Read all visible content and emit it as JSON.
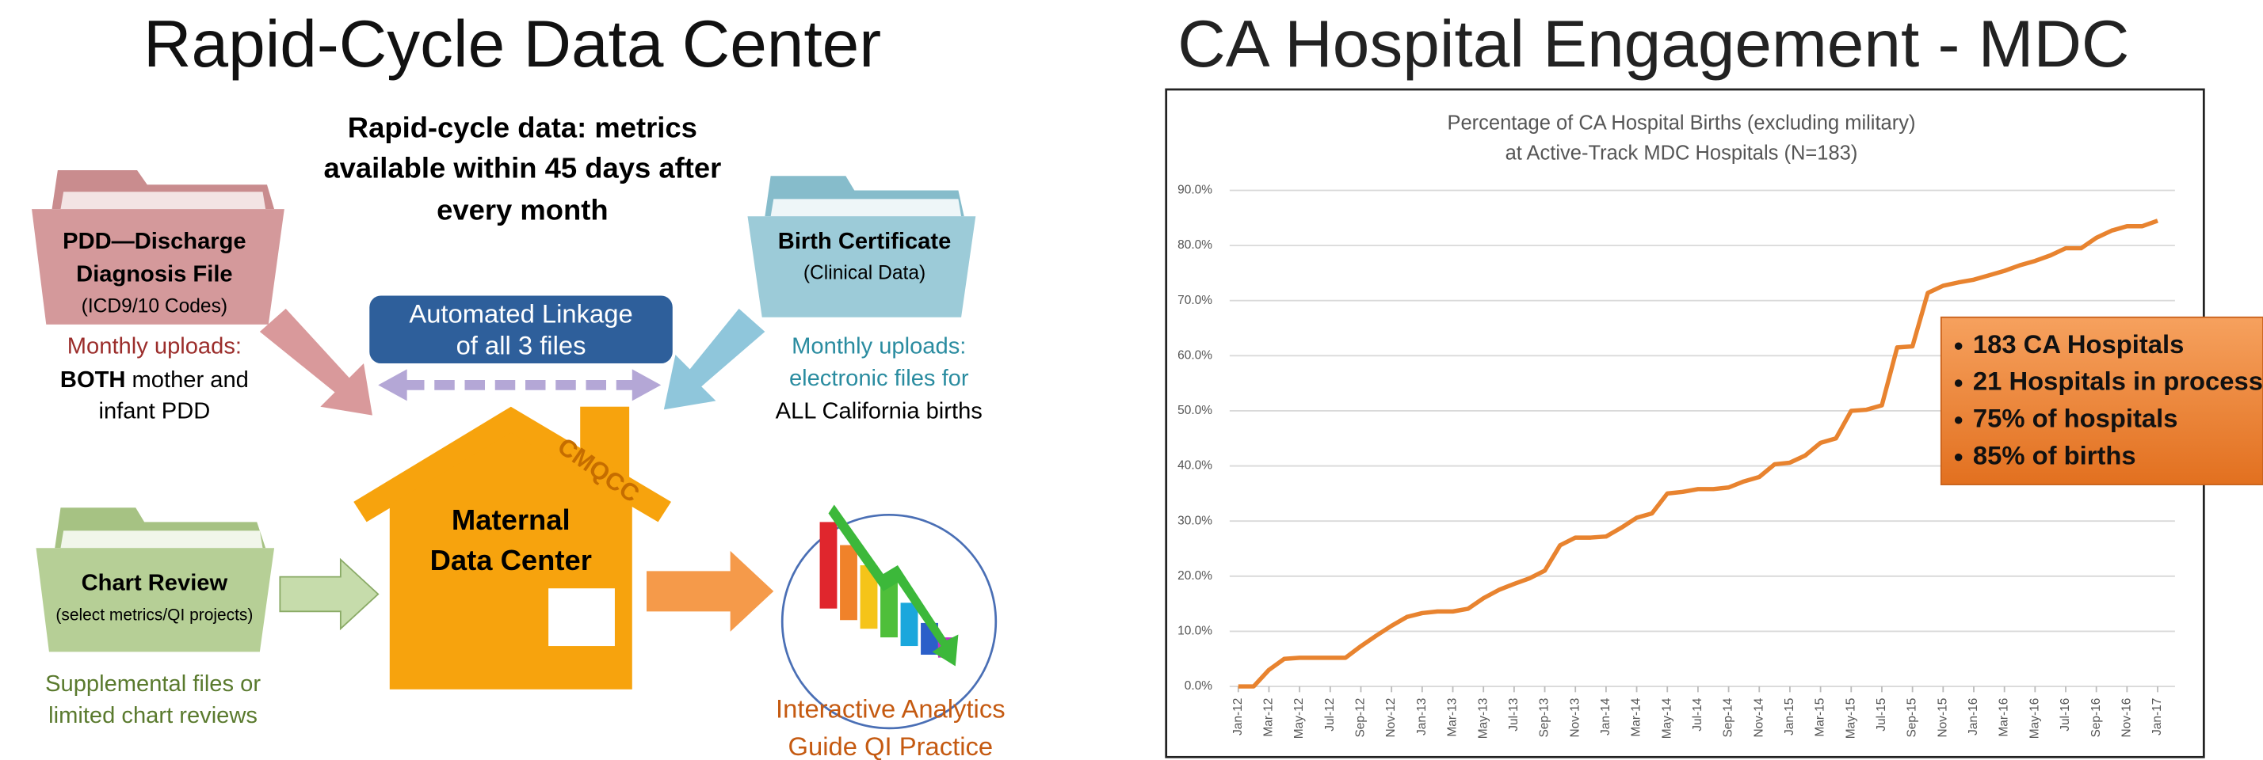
{
  "diagram": {
    "title": "Rapid-Cycle Data Center",
    "header": [
      "Rapid-cycle data: metrics",
      "available within 45 days after",
      "every month"
    ],
    "pdd": {
      "lines": [
        "PDD—Discharge",
        "Diagnosis File"
      ],
      "sub": "(ICD9/10 Codes)",
      "note": [
        "Monthly uploads:"
      ],
      "both": "BOTH",
      "note_rest": [
        "mother and",
        "infant PDD"
      ]
    },
    "birth": {
      "lines": [
        "Birth Certificate"
      ],
      "sub": "(Clinical Data)",
      "note": [
        "Monthly uploads:",
        "electronic files for"
      ],
      "note_black": "ALL California  births"
    },
    "linkage": [
      "Automated Linkage",
      "of all 3 files"
    ],
    "house": {
      "roof": "CMQCC",
      "lines": [
        "Maternal",
        "Data Center"
      ]
    },
    "chart_review": {
      "lines": [
        "Chart Review"
      ],
      "sub": "(select metrics/QI projects)",
      "note": [
        "Supplemental files or",
        "limited chart reviews"
      ]
    },
    "analytics": [
      "Interactive Analytics",
      "Guide QI Practice"
    ]
  },
  "chart_data": {
    "type": "line",
    "heading": "CA Hospital Engagement - MDC",
    "title": [
      "Percentage of CA Hospital Births (excluding military)",
      "at Active-Track MDC Hospitals (N=183)"
    ],
    "categories": [
      "Jan-12",
      null,
      "Mar-12",
      null,
      "May-12",
      null,
      "Jul-12",
      null,
      "Sep-12",
      null,
      "Nov-12",
      null,
      "Jan-13",
      null,
      "Mar-13",
      null,
      "May-13",
      null,
      "Jul-13",
      null,
      "Sep-13",
      null,
      "Nov-13",
      null,
      "Jan-14",
      null,
      "Mar-14",
      null,
      "May-14",
      null,
      "Jul-14",
      null,
      "Sep-14",
      null,
      "Nov-14",
      null,
      "Jan-15",
      null,
      "Mar-15",
      null,
      "May-15",
      null,
      "Jul-15",
      null,
      "Sep-15",
      null,
      "Nov-15",
      null,
      "Jan-16",
      null,
      "Mar-16",
      null,
      "May-16",
      null,
      "Jul-16",
      null,
      "Sep-16",
      null,
      "Nov-16",
      null,
      "Jan-17"
    ],
    "values": [
      0,
      0,
      3,
      5,
      5.2,
      5.2,
      5.2,
      5.2,
      7.3,
      9.2,
      11,
      12.6,
      13.3,
      13.6,
      13.6,
      14.1,
      16,
      17.5,
      18.6,
      19.6,
      21,
      25.6,
      27,
      27,
      27.2,
      28.8,
      30.6,
      31.4,
      35,
      35.3,
      35.8,
      35.8,
      36.1,
      37.2,
      38,
      40.3,
      40.6,
      41.9,
      44.2,
      45,
      50,
      50.2,
      51,
      61.5,
      61.7,
      71.4,
      72.7,
      73.3,
      73.8,
      74.6,
      75.4,
      76.4,
      77.2,
      78.2,
      79.5,
      79.5,
      81.4,
      82.7,
      83.5,
      83.5,
      84.5
    ],
    "color": "#e8832f",
    "ylim": [
      0,
      90
    ],
    "yticks": [
      {
        "value": 0,
        "label": "0.0%"
      },
      {
        "value": 10,
        "label": "10.0%"
      },
      {
        "value": 20,
        "label": "20.0%"
      },
      {
        "value": 30,
        "label": "30.0%"
      },
      {
        "value": 40,
        "label": "40.0%"
      },
      {
        "value": 50,
        "label": "50.0%"
      },
      {
        "value": 60,
        "label": "60.0%"
      },
      {
        "value": 70,
        "label": "70.0%"
      },
      {
        "value": 80,
        "label": "80.0%"
      },
      {
        "value": 90,
        "label": "90.0%"
      }
    ],
    "grid": true,
    "annotations": [
      "183 CA Hospitals",
      "21 Hospitals in process",
      "75% of hospitals",
      "85% of births"
    ]
  }
}
